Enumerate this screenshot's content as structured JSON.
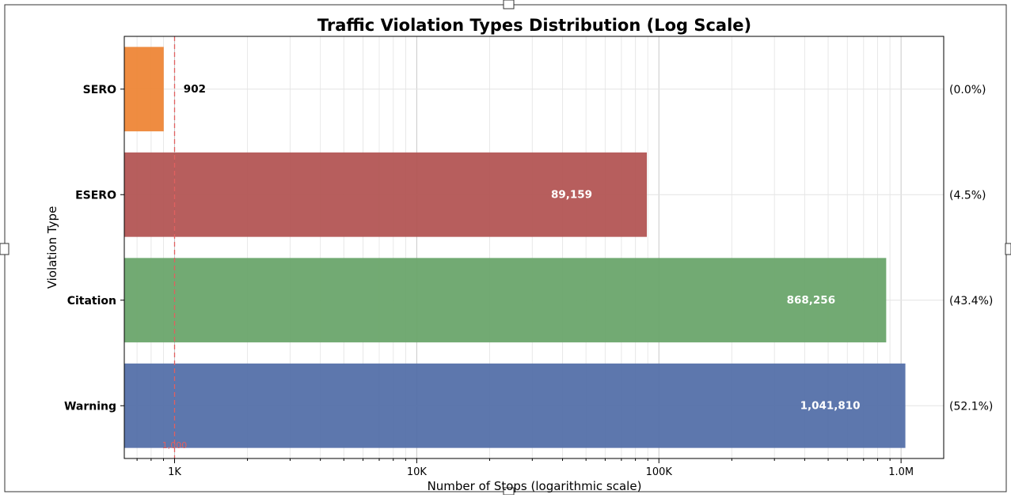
{
  "chart_data": {
    "type": "bar",
    "orientation": "horizontal",
    "title": "Traffic Violation Types Distribution (Log Scale)",
    "xlabel": "Number of Stops (logarithmic scale)",
    "ylabel": "Violation Type",
    "xscale": "log",
    "xlim": [
      620,
      1500000
    ],
    "grid": true,
    "categories": [
      "SERO",
      "ESERO",
      "Citation",
      "Warning"
    ],
    "values": [
      902,
      89159,
      868256,
      1041810
    ],
    "value_labels": [
      "902",
      "89,159",
      "868,256",
      "1,041,810"
    ],
    "percent_labels": [
      "(0.0%)",
      "(4.5%)",
      "(43.4%)",
      "(52.1%)"
    ],
    "colors": [
      "#ee8637",
      "#b35554",
      "#6aa56b",
      "#5470a9"
    ],
    "x_ticks": [
      {
        "value": 1000,
        "label": "1K"
      },
      {
        "value": 10000,
        "label": "10K"
      },
      {
        "value": 100000,
        "label": "100K"
      },
      {
        "value": 1000000,
        "label": "1.0M"
      }
    ],
    "reference_line": {
      "value": 1000,
      "label": "1,000",
      "color": "#e06060"
    }
  }
}
